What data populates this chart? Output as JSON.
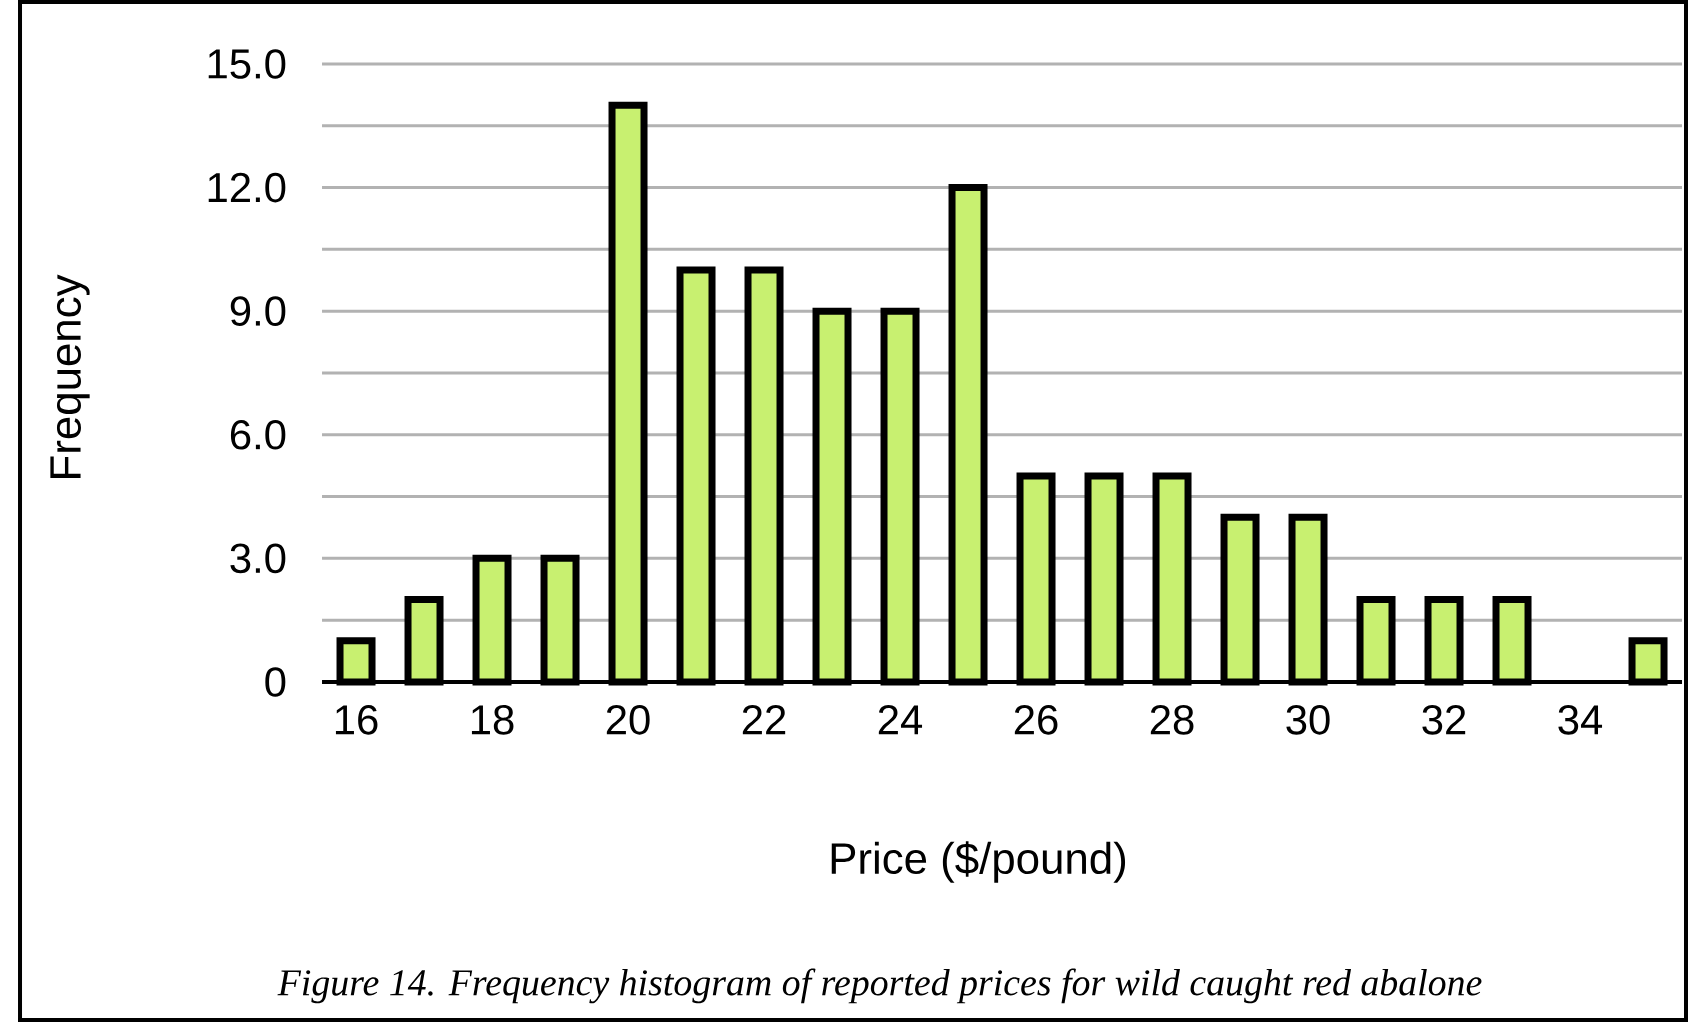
{
  "chart_data": {
    "type": "bar",
    "xlabel": "Price ($/pound)",
    "ylabel": "Frequency",
    "annotations": [
      "Figure 14. Frequency histogram of  reported prices for wild caught red abalone"
    ],
    "categories": [
      "16",
      null,
      "18",
      null,
      "20",
      null,
      "22",
      null,
      "24",
      null,
      "26",
      null,
      "28",
      null,
      "30",
      null,
      "32",
      null,
      "34",
      null
    ],
    "values": [
      1,
      2,
      3,
      3,
      14,
      10,
      10,
      9,
      9,
      12,
      5,
      5,
      5,
      4,
      4,
      2,
      2,
      2,
      0,
      1
    ],
    "color": "#c8f070",
    "ylim": [
      0,
      15
    ],
    "yticks": [
      0,
      {
        "value": 1.5,
        "label": null
      },
      {
        "value": 3,
        "label": "3.0"
      },
      {
        "value": 4.5,
        "label": null
      },
      {
        "value": 6,
        "label": "6.0"
      },
      {
        "value": 7.5,
        "label": null
      },
      {
        "value": 9,
        "label": "9.0"
      },
      {
        "value": 10.5,
        "label": null
      },
      {
        "value": 12,
        "label": "12.0"
      },
      {
        "value": 13.5,
        "label": null
      },
      {
        "value": 15,
        "label": "15.0"
      }
    ],
    "grid": "y"
  }
}
